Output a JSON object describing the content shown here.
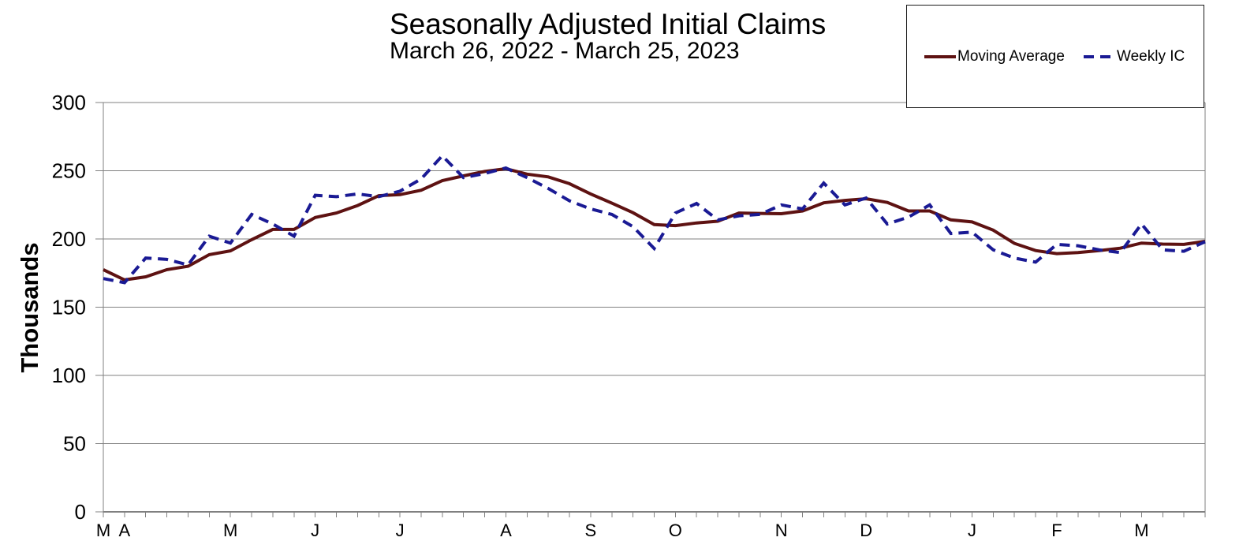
{
  "chart_data": {
    "type": "line",
    "title": "Seasonally Adjusted Initial Claims",
    "subtitle": "March 26, 2022 - March 25, 2023",
    "ylabel": "Thousands",
    "ylim": [
      0,
      300
    ],
    "y_ticks": [
      0,
      50,
      100,
      150,
      200,
      250,
      300
    ],
    "x_unit": "week",
    "weeks": 53,
    "grid": true,
    "legend_position": "top-right",
    "x_month_labels": [
      {
        "label": "M",
        "week": 0
      },
      {
        "label": "A",
        "week": 1
      },
      {
        "label": "M",
        "week": 6
      },
      {
        "label": "J",
        "week": 10
      },
      {
        "label": "J",
        "week": 14
      },
      {
        "label": "A",
        "week": 19
      },
      {
        "label": "S",
        "week": 23
      },
      {
        "label": "O",
        "week": 27
      },
      {
        "label": "N",
        "week": 32
      },
      {
        "label": "D",
        "week": 36
      },
      {
        "label": "J",
        "week": 41
      },
      {
        "label": "F",
        "week": 45
      },
      {
        "label": "M",
        "week": 49
      }
    ],
    "series": [
      {
        "name": "Moving Average",
        "style": "solid",
        "color": "#5e1212",
        "values": [
          177.5,
          170,
          172.25,
          177.5,
          180,
          188.5,
          191.25,
          199.5,
          207,
          207,
          215.75,
          219,
          224.5,
          231.75,
          232.5,
          235.75,
          242.75,
          246.25,
          249.5,
          251.5,
          247.5,
          245.5,
          240.5,
          233,
          226.25,
          219.25,
          210.5,
          209.75,
          211.75,
          213,
          219,
          218.75,
          218.5,
          220.5,
          226.5,
          228.25,
          229.5,
          226.75,
          220.5,
          220.5,
          214,
          212.5,
          206.5,
          196.75,
          191.5,
          189.25,
          190,
          191.5,
          193.25,
          197,
          196.25,
          196,
          198.25
        ]
      },
      {
        "name": "Weekly IC",
        "style": "dashed",
        "color": "#1a1a94",
        "values": [
          171,
          168,
          186,
          185,
          181,
          202,
          197,
          218,
          211,
          202,
          232,
          231,
          233,
          231,
          235,
          244,
          261,
          245,
          248,
          252,
          245,
          237,
          228,
          222,
          218,
          209,
          193,
          219,
          226,
          214,
          217,
          218,
          225,
          222,
          241,
          225,
          230,
          211,
          216,
          225,
          204,
          205,
          192,
          186,
          183,
          196,
          195,
          192,
          190,
          211,
          192,
          191,
          198
        ]
      }
    ]
  },
  "colors": {
    "background": "#ffffff",
    "grid": "#808080",
    "axis": "#808080",
    "text": "#000000",
    "legend_border": "#1a1a1a"
  }
}
